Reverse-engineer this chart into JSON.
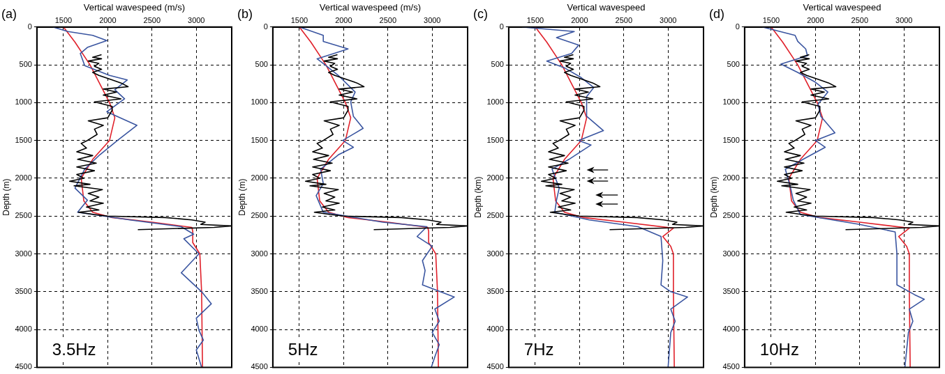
{
  "chart_data": [
    {
      "type": "line",
      "xlabel": "Vertical wavespeed (m/s)",
      "ylabel": "Depth (m)",
      "annotations": [
        "(a)",
        "3.5Hz"
      ],
      "xlim": [
        1200,
        3400
      ],
      "xticks": [
        1500,
        2000,
        2500,
        3000
      ],
      "ylim": [
        4500,
        0
      ],
      "yticks": [
        0,
        500,
        1000,
        1500,
        2000,
        2500,
        3000,
        3500,
        4000,
        4500
      ],
      "grid": true,
      "line_style": "solid",
      "series": [
        {
          "color": "#000000",
          "x": [
            1930,
            1830,
            1930,
            1780,
            1900,
            1850,
            1930,
            1830,
            1900,
            2050,
            2150,
            2230,
            1950,
            2100,
            1950,
            2150,
            1850,
            2050,
            2050,
            2000,
            1780,
            1950,
            1850,
            1880,
            1770,
            1700,
            1760,
            1650,
            1830,
            1660,
            1870,
            1650,
            1850,
            1650,
            1730,
            1570,
            1800,
            1620,
            1940,
            1780,
            1900,
            1800,
            1950,
            1760,
            1900,
            1670,
            1850,
            2000,
            2650,
            2950,
            3100,
            3050,
            3400,
            3200,
            2340
          ],
          "values": [
            365,
            400,
            420,
            450,
            480,
            520,
            560,
            600,
            640,
            700,
            740,
            790,
            820,
            860,
            900,
            950,
            990,
            1050,
            1100,
            1200,
            1240,
            1300,
            1350,
            1420,
            1500,
            1540,
            1600,
            1650,
            1700,
            1750,
            1800,
            1850,
            1900,
            1950,
            2000,
            2040,
            2080,
            2100,
            2150,
            2200,
            2250,
            2300,
            2330,
            2380,
            2420,
            2450,
            2480,
            2500,
            2520,
            2550,
            2580,
            2610,
            2630,
            2650,
            2680
          ]
        },
        {
          "color": "#3a55a0",
          "x": [
            1380,
            1550,
            1830,
            1990,
            1770,
            1690,
            1740,
            2020,
            2220,
            2080,
            2190,
            1990,
            2330,
            2110,
            1910,
            1740,
            1630,
            1770,
            1660,
            2250,
            2830,
            2970,
            2860,
            3030,
            2830,
            3060,
            3170,
            3000,
            3030,
            3080,
            3000,
            3060
          ],
          "values": [
            0,
            60,
            110,
            180,
            270,
            350,
            510,
            640,
            700,
            830,
            950,
            1120,
            1300,
            1500,
            1690,
            1880,
            2130,
            2290,
            2450,
            2550,
            2640,
            2740,
            2800,
            3000,
            3250,
            3500,
            3660,
            3850,
            4010,
            4140,
            4270,
            4500
          ]
        },
        {
          "color": "#e0202a",
          "x": [
            1500,
            1630,
            1800,
            2020,
            2080,
            2020,
            1830,
            1700,
            1730,
            1830,
            2050,
            2500,
            2950,
            2960,
            2960,
            3040,
            3060,
            3070
          ],
          "values": [
            0,
            200,
            500,
            1000,
            1200,
            1500,
            1750,
            2000,
            2300,
            2450,
            2520,
            2580,
            2650,
            2700,
            2850,
            3000,
            3500,
            4500
          ]
        }
      ]
    },
    {
      "type": "line",
      "xlabel": "Vertical wavespeed (m/s)",
      "ylabel": "Depth (m)",
      "annotations": [
        "(b)",
        "5Hz"
      ],
      "xlim": [
        1200,
        3400
      ],
      "xticks": [
        1500,
        2000,
        2500,
        3000
      ],
      "ylim": [
        4500,
        0
      ],
      "yticks": [
        0,
        500,
        1000,
        1500,
        2000,
        2500,
        3000,
        3500,
        4000,
        4500
      ],
      "grid": true,
      "line_style": "solid",
      "series": [
        {
          "color": "#000000",
          "x": [
            1930,
            1830,
            1930,
            1780,
            1900,
            1850,
            1930,
            1830,
            1900,
            2050,
            2150,
            2230,
            1950,
            2100,
            1950,
            2150,
            1850,
            2050,
            2050,
            2000,
            1780,
            1950,
            1850,
            1880,
            1770,
            1700,
            1760,
            1650,
            1830,
            1660,
            1870,
            1650,
            1850,
            1650,
            1730,
            1570,
            1800,
            1620,
            1940,
            1780,
            1900,
            1800,
            1950,
            1760,
            1900,
            1670,
            1850,
            2000,
            2650,
            2950,
            3100,
            3050,
            3400,
            3200,
            2340
          ],
          "values": [
            365,
            400,
            420,
            450,
            480,
            520,
            560,
            600,
            640,
            700,
            740,
            790,
            820,
            860,
            900,
            950,
            990,
            1050,
            1100,
            1200,
            1240,
            1300,
            1350,
            1420,
            1500,
            1540,
            1600,
            1650,
            1700,
            1750,
            1800,
            1850,
            1900,
            1950,
            2000,
            2040,
            2080,
            2100,
            2150,
            2200,
            2250,
            2300,
            2330,
            2380,
            2420,
            2450,
            2480,
            2500,
            2520,
            2550,
            2580,
            2610,
            2630,
            2650,
            2680
          ]
        },
        {
          "color": "#3a55a0",
          "x": [
            1500,
            1770,
            1770,
            2050,
            1700,
            1800,
            1940,
            2130,
            2080,
            2110,
            2220,
            1990,
            2110,
            1940,
            1740,
            1770,
            1690,
            1770,
            2440,
            2940,
            2830,
            3000,
            2890,
            2920,
            2890,
            3250,
            3030,
            3080,
            3000,
            3080,
            3030,
            2990
          ],
          "values": [
            0,
            110,
            190,
            290,
            420,
            510,
            640,
            860,
            990,
            1180,
            1340,
            1500,
            1590,
            1690,
            1880,
            2070,
            2230,
            2450,
            2580,
            2640,
            2770,
            2900,
            3090,
            3220,
            3410,
            3570,
            3730,
            3890,
            4040,
            4200,
            4360,
            4500
          ]
        },
        {
          "color": "#e0202a",
          "x": [
            1500,
            1630,
            1800,
            2020,
            2080,
            2020,
            1830,
            1700,
            1730,
            1830,
            2050,
            2500,
            2950,
            2960,
            2960,
            3040,
            3060,
            3070
          ],
          "values": [
            0,
            200,
            500,
            1000,
            1200,
            1500,
            1750,
            2000,
            2300,
            2450,
            2520,
            2580,
            2650,
            2700,
            2850,
            3000,
            3500,
            4500
          ]
        }
      ]
    },
    {
      "type": "line",
      "xlabel": "Vertical wavespeed",
      "ylabel": "Depth (km)",
      "annotations": [
        "(c)",
        "7Hz"
      ],
      "xlim": [
        1200,
        3400
      ],
      "xticks": [
        1500,
        2000,
        2500,
        3000
      ],
      "ylim": [
        4500,
        0
      ],
      "yticks": [
        0,
        500,
        1000,
        1500,
        2000,
        2500,
        3000,
        3500,
        4000,
        4500
      ],
      "grid": true,
      "line_style": "solid",
      "series": [
        {
          "color": "#000000",
          "x": [
            1930,
            1830,
            1930,
            1780,
            1900,
            1850,
            1930,
            1830,
            1900,
            2050,
            2150,
            2230,
            1950,
            2100,
            1950,
            2150,
            1850,
            2050,
            2050,
            2000,
            1780,
            1950,
            1850,
            1880,
            1770,
            1700,
            1760,
            1650,
            1830,
            1660,
            1870,
            1650,
            1850,
            1650,
            1730,
            1570,
            1800,
            1620,
            1940,
            1780,
            1900,
            1800,
            1950,
            1760,
            1900,
            1670,
            1850,
            2000,
            2650,
            2950,
            3100,
            3050,
            3400,
            3200,
            2340
          ],
          "values": [
            365,
            400,
            420,
            450,
            480,
            520,
            560,
            600,
            640,
            700,
            740,
            790,
            820,
            860,
            900,
            950,
            990,
            1050,
            1100,
            1200,
            1240,
            1300,
            1350,
            1420,
            1500,
            1540,
            1600,
            1650,
            1700,
            1750,
            1800,
            1850,
            1900,
            1950,
            2000,
            2040,
            2080,
            2100,
            2150,
            2200,
            2250,
            2300,
            2330,
            2380,
            2420,
            2450,
            2480,
            2500,
            2520,
            2550,
            2580,
            2610,
            2630,
            2650,
            2680
          ]
        },
        {
          "color": "#3a55a0",
          "x": [
            1350,
            1940,
            1740,
            1990,
            1910,
            1630,
            1830,
            2020,
            2160,
            2080,
            2080,
            2270,
            1990,
            2130,
            1880,
            1690,
            1770,
            1740,
            1720,
            2110,
            2660,
            2920,
            2940,
            2920,
            3030,
            3220,
            3030,
            3080,
            3030,
            3000
          ],
          "values": [
            0,
            60,
            140,
            240,
            350,
            450,
            540,
            670,
            800,
            920,
            1180,
            1370,
            1500,
            1560,
            1750,
            1880,
            2130,
            2290,
            2450,
            2550,
            2640,
            2770,
            3090,
            3410,
            3500,
            3570,
            3730,
            3890,
            4040,
            4500
          ]
        },
        {
          "color": "#e0202a",
          "x": [
            1500,
            1630,
            1800,
            2020,
            2080,
            2020,
            1830,
            1700,
            1730,
            1830,
            2050,
            2500,
            3060,
            2940,
            3030,
            3060,
            3060,
            3070
          ],
          "values": [
            0,
            200,
            500,
            1000,
            1200,
            1500,
            1750,
            2000,
            2300,
            2450,
            2520,
            2580,
            2660,
            2770,
            2900,
            3000,
            3500,
            4500
          ]
        }
      ]
    },
    {
      "type": "line",
      "xlabel": "Vertical wavespeed",
      "ylabel": "Depth (km)",
      "annotations": [
        "(d)",
        "10Hz"
      ],
      "xlim": [
        1200,
        3400
      ],
      "xticks": [
        1500,
        2000,
        2500,
        3000
      ],
      "ylim": [
        4500,
        0
      ],
      "yticks": [
        0,
        500,
        1000,
        1500,
        2000,
        2500,
        3000,
        3500,
        4000,
        4500
      ],
      "grid": true,
      "line_style": "solid",
      "series": [
        {
          "color": "#000000",
          "x": [
            1930,
            1830,
            1930,
            1780,
            1900,
            1850,
            1930,
            1830,
            1900,
            2050,
            2150,
            2230,
            1950,
            2100,
            1950,
            2150,
            1850,
            2050,
            2050,
            2000,
            1780,
            1950,
            1850,
            1880,
            1770,
            1700,
            1760,
            1650,
            1830,
            1660,
            1870,
            1650,
            1850,
            1650,
            1730,
            1570,
            1800,
            1620,
            1940,
            1780,
            1900,
            1800,
            1950,
            1760,
            1900,
            1670,
            1850,
            2000,
            2650,
            2950,
            3100,
            3050,
            3400,
            3200,
            2340
          ],
          "values": [
            365,
            400,
            420,
            450,
            480,
            520,
            560,
            600,
            640,
            700,
            740,
            790,
            820,
            860,
            900,
            950,
            990,
            1050,
            1100,
            1200,
            1240,
            1300,
            1350,
            1420,
            1500,
            1540,
            1600,
            1650,
            1700,
            1750,
            1800,
            1850,
            1900,
            1950,
            2000,
            2040,
            2080,
            2100,
            2150,
            2200,
            2250,
            2300,
            2330,
            2380,
            2420,
            2450,
            2480,
            2500,
            2520,
            2550,
            2580,
            2610,
            2630,
            2650,
            2680
          ]
        },
        {
          "color": "#3a55a0",
          "x": [
            1400,
            1770,
            1800,
            1890,
            1910,
            1610,
            1800,
            2000,
            2140,
            2030,
            2060,
            2220,
            2000,
            2110,
            1860,
            1660,
            1720,
            1750,
            1830,
            2500,
            2900,
            2920,
            2920,
            3120,
            3230,
            3060,
            3100,
            3050,
            3010
          ],
          "values": [
            0,
            110,
            190,
            290,
            380,
            490,
            600,
            730,
            860,
            1020,
            1180,
            1400,
            1500,
            1590,
            1750,
            1880,
            2130,
            2290,
            2480,
            2610,
            2710,
            3000,
            3410,
            3540,
            3600,
            3730,
            3890,
            4040,
            4500
          ]
        },
        {
          "color": "#e0202a",
          "x": [
            1500,
            1630,
            1800,
            2020,
            2080,
            2020,
            1830,
            1700,
            1730,
            1830,
            2050,
            2500,
            3060,
            2940,
            3030,
            3060,
            3060,
            3070
          ],
          "values": [
            0,
            200,
            500,
            1000,
            1200,
            1500,
            1750,
            2000,
            2300,
            2450,
            2520,
            2580,
            2660,
            2770,
            2900,
            3000,
            3500,
            4500
          ]
        }
      ]
    }
  ]
}
